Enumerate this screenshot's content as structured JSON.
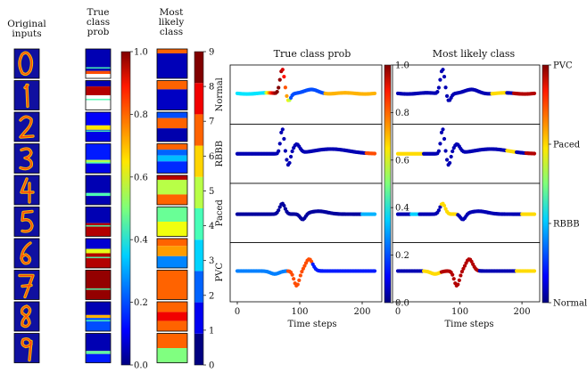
{
  "left_panel": {
    "col_titles": [
      [
        "Original",
        "inputs"
      ],
      [
        "True",
        "class",
        "prob"
      ],
      [
        "Most",
        "likely",
        "class"
      ]
    ],
    "digits": [
      "0",
      "1",
      "2",
      "3",
      "4",
      "5",
      "6",
      "7",
      "8",
      "9"
    ],
    "prob_colorbar": {
      "ticks": [
        "0.0",
        "0.2",
        "0.4",
        "0.6",
        "0.8",
        "1.0"
      ],
      "range": [
        0,
        1
      ]
    },
    "class_colorbar": {
      "ticks": [
        "0",
        "1",
        "2",
        "3",
        "4",
        "5",
        "6",
        "7",
        "8",
        "9"
      ],
      "range": [
        0,
        9
      ]
    }
  },
  "right_panel": {
    "titles": [
      "True class prob",
      "Most likely class"
    ],
    "row_labels": [
      "Normal",
      "RBBB",
      "Paced",
      "PVC"
    ],
    "prob_colorbar": {
      "ticks": [
        "0.0",
        "0.2",
        "0.4",
        "0.6",
        "0.8",
        "1.0"
      ],
      "range": [
        0,
        1
      ]
    },
    "class_colorbar": {
      "ticks": [
        "Normal",
        "RBBB",
        "Paced",
        "PVC"
      ]
    }
  },
  "chart_data": [
    {
      "type": "line",
      "title": "True class prob",
      "xlabel": "Time steps",
      "ylabel": "",
      "xlim": [
        0,
        220
      ],
      "xticks": [
        0,
        100,
        200
      ],
      "series": [
        {
          "name": "Normal",
          "x": [
            0,
            20,
            40,
            55,
            65,
            72,
            80,
            90,
            110,
            130,
            160,
            190,
            220
          ]
        },
        {
          "name": "RBBB",
          "x": [
            0,
            20,
            40,
            60,
            70,
            75,
            80,
            90,
            110,
            140,
            170,
            200,
            220
          ]
        },
        {
          "name": "Paced",
          "x": [
            0,
            30,
            60,
            75,
            90,
            105,
            120,
            150,
            180,
            210,
            220
          ]
        },
        {
          "name": "PVC",
          "x": [
            0,
            30,
            60,
            75,
            90,
            100,
            115,
            140,
            170,
            200,
            220
          ]
        }
      ]
    },
    {
      "type": "line",
      "title": "Most likely class",
      "xlabel": "Time steps",
      "ylabel": "",
      "xlim": [
        0,
        220
      ],
      "xticks": [
        0,
        100,
        200
      ],
      "series": [
        {
          "name": "Normal"
        },
        {
          "name": "RBBB"
        },
        {
          "name": "Paced"
        },
        {
          "name": "PVC"
        }
      ]
    }
  ]
}
